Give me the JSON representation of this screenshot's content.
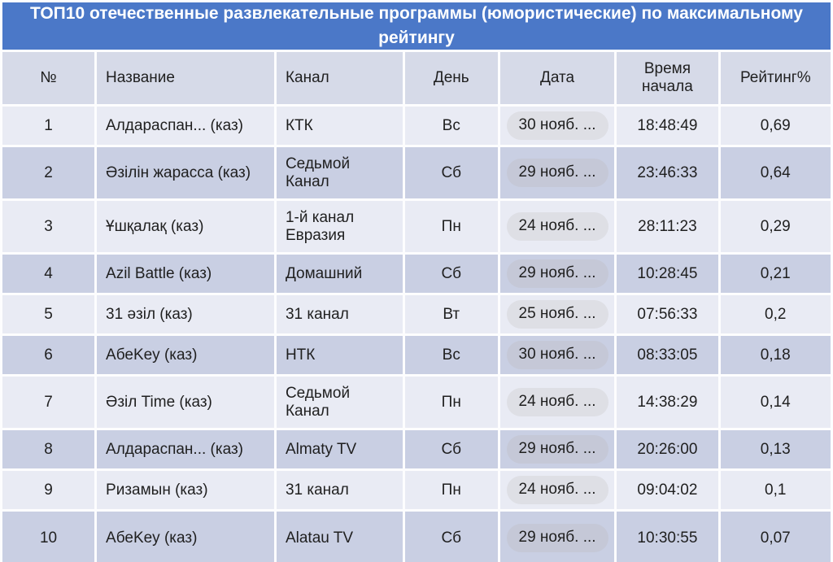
{
  "title": "ТОП10 отечественные развлекательные программы (юмористические) по максимальному рейтингу",
  "colors": {
    "title_bar": "#4b78c8",
    "title_text": "#ffffff",
    "header_row": "#d6dae8",
    "row_light": "#e9ebf4",
    "row_dark": "#c9cfe3",
    "pill_on_light": "#dedfe5",
    "pill_on_dark": "#c5c8d7",
    "text": "#1f1f1f"
  },
  "chart_data": {
    "type": "table",
    "title": "ТОП10 отечественные развлекательные программы (юмористические) по максимальному рейтингу",
    "columns": [
      "№",
      "Название",
      "Канал",
      "День",
      "Дата",
      "Время начала",
      "Рейтинг%"
    ],
    "rows": [
      {
        "num": "1",
        "name": "Алдараспан... (каз)",
        "channel": "КТК",
        "day": "Вс",
        "date": "30 нояб. ...",
        "time": "18:48:49",
        "rating": "0,69"
      },
      {
        "num": "2",
        "name": "Әзілін жарасса (каз)",
        "channel": "Седьмой Канал",
        "day": "Сб",
        "date": "29 нояб. ...",
        "time": "23:46:33",
        "rating": "0,64"
      },
      {
        "num": "3",
        "name": "Ұшқалақ (каз)",
        "channel": "1-й канал Евразия",
        "day": "Пн",
        "date": "24 нояб. ...",
        "time": "28:11:23",
        "rating": "0,29"
      },
      {
        "num": "4",
        "name": "Azil Battle (каз)",
        "channel": "Домашний",
        "day": "Сб",
        "date": "29 нояб. ...",
        "time": "10:28:45",
        "rating": "0,21"
      },
      {
        "num": "5",
        "name": "31 әзіл (каз)",
        "channel": "31 канал",
        "day": "Вт",
        "date": "25 нояб. ...",
        "time": "07:56:33",
        "rating": "0,2"
      },
      {
        "num": "6",
        "name": "АбеKey (каз)",
        "channel": "НТК",
        "day": "Вс",
        "date": "30 нояб. ...",
        "time": "08:33:05",
        "rating": "0,18"
      },
      {
        "num": "7",
        "name": "Әзіл Time (каз)",
        "channel": "Седьмой Канал",
        "day": "Пн",
        "date": "24 нояб. ...",
        "time": "14:38:29",
        "rating": "0,14"
      },
      {
        "num": "8",
        "name": "Алдараспан... (каз)",
        "channel": "Almaty TV",
        "day": "Сб",
        "date": "29 нояб. ...",
        "time": "20:26:00",
        "rating": "0,13"
      },
      {
        "num": "9",
        "name": "Ризамын (каз)",
        "channel": "31 канал",
        "day": "Пн",
        "date": "24 нояб. ...",
        "time": "09:04:02",
        "rating": "0,1"
      },
      {
        "num": "10",
        "name": "АбеKey (каз)",
        "channel": "Alatau TV",
        "day": "Сб",
        "date": "29 нояб. ...",
        "time": "10:30:55",
        "rating": "0,07"
      }
    ]
  }
}
